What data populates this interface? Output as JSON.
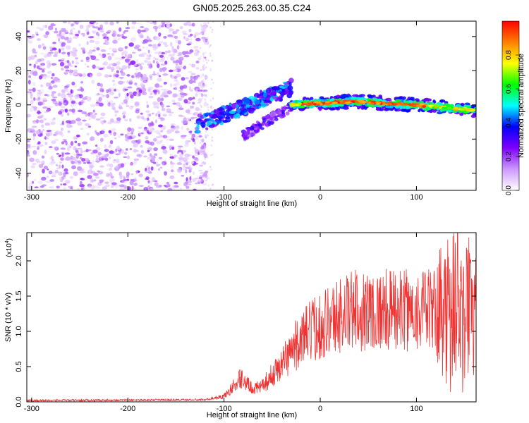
{
  "title": "GN05.2025.263.00.35.C24",
  "chart_data": [
    {
      "type": "heatmap",
      "xlabel": "Height of straight line (km)",
      "ylabel": "Frequency (Hz)",
      "xlim": [
        -305,
        162
      ],
      "ylim": [
        -50,
        49
      ],
      "x_ticks": [
        -300,
        -200,
        -100,
        0,
        100
      ],
      "x_tick_labels": [
        "-300",
        "-200",
        "-100",
        "0",
        "100"
      ],
      "y_ticks": [
        -40,
        -20,
        0,
        20,
        40
      ],
      "y_tick_labels": [
        "-40",
        "-20",
        "0",
        "20",
        "40"
      ],
      "colorbar": {
        "label": "Normalized spectral amplitude",
        "range": [
          0,
          1
        ],
        "ticks": [
          0.0,
          0.2,
          0.4,
          0.6,
          0.8
        ],
        "tick_labels": [
          "0.0",
          "0.2",
          "0.4",
          "0.6",
          "0.8"
        ],
        "colors": [
          "#ffffff",
          "#cc99ff",
          "#7f00ff",
          "#0000ff",
          "#00ffff",
          "#00ff00",
          "#ffff00",
          "#ff8000",
          "#ff0000"
        ]
      },
      "regions": [
        {
          "name": "noise",
          "x_range": [
            -305,
            -118
          ],
          "freq_range": [
            -50,
            49
          ],
          "amplitude": [
            0.05,
            0.25
          ]
        },
        {
          "name": "onset",
          "x_range": [
            -128,
            -30
          ],
          "freq_start": -12,
          "freq_end": 10,
          "amplitude": [
            0.2,
            0.5
          ]
        },
        {
          "name": "branch",
          "x_range": [
            -80,
            -28
          ],
          "freq_start": -18,
          "freq_end": 0,
          "amplitude": [
            0.15,
            0.35
          ]
        },
        {
          "name": "signal",
          "x_range": [
            -30,
            162
          ],
          "freq_center": [
            0,
            2,
            0,
            -3
          ],
          "amplitude": [
            0.4,
            1.0
          ]
        }
      ]
    },
    {
      "type": "line",
      "xlabel": "Height of straight line (km)",
      "ylabel": "SNR (10 * v/v)",
      "multiplier": "(x10",
      "multiplier_exp": "4",
      "multiplier_close": ")",
      "xlim": [
        -305,
        162
      ],
      "ylim": [
        0,
        2.4
      ],
      "x_ticks": [
        -300,
        -200,
        -100,
        0,
        100
      ],
      "x_tick_labels": [
        "-300",
        "-200",
        "-100",
        "0",
        "100"
      ],
      "y_ticks": [
        0.0,
        0.5,
        1.0,
        1.5,
        2.0
      ],
      "y_tick_labels": [
        "0.0",
        "0.5",
        "1.0",
        "1.5",
        "2.0"
      ],
      "color": "#ee3333",
      "envelope": {
        "x": [
          -305,
          -120,
          -100,
          -88,
          -82,
          -72,
          -62,
          -52,
          -42,
          -32,
          -22,
          -10,
          0,
          15,
          35,
          60,
          90,
          120,
          140,
          155,
          162
        ],
        "y": [
          0.02,
          0.03,
          0.08,
          0.25,
          0.35,
          0.2,
          0.2,
          0.35,
          0.5,
          0.7,
          0.85,
          1.0,
          1.1,
          1.2,
          1.3,
          1.3,
          1.3,
          1.3,
          1.4,
          1.4,
          1.3
        ]
      }
    }
  ]
}
